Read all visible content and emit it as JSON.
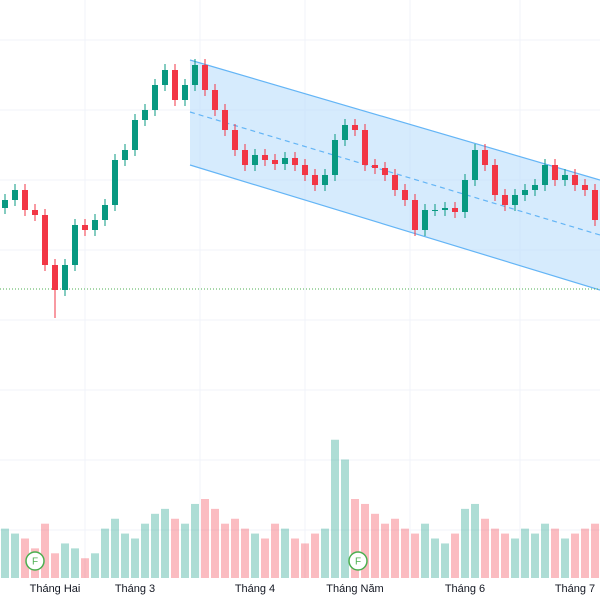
{
  "chart_data": {
    "type": "candlestick",
    "categories": [
      null,
      null,
      null,
      null,
      null,
      "Tháng Hai",
      null,
      null,
      null,
      null,
      null,
      null,
      null,
      "Tháng 3",
      null,
      null,
      null,
      null,
      null,
      null,
      null,
      null,
      null,
      null,
      null,
      "Tháng 4",
      null,
      null,
      null,
      null,
      null,
      null,
      null,
      null,
      null,
      "Tháng Năm",
      null,
      null,
      null,
      null,
      null,
      null,
      null,
      null,
      null,
      null,
      "Tháng 6",
      null,
      null,
      null,
      null,
      null,
      null,
      null,
      null,
      null,
      null,
      "Tháng 7",
      null,
      null
    ],
    "open": [
      48,
      50,
      52.5,
      47.5,
      46.25,
      33.75,
      27.5,
      33.75,
      43.75,
      42.5,
      45,
      48.75,
      60,
      62.5,
      70,
      72.5,
      78.75,
      82.5,
      75,
      78.75,
      83.75,
      77.5,
      72.5,
      67.5,
      62.5,
      58.75,
      61.25,
      60,
      59,
      60.5,
      58.75,
      56.25,
      53.75,
      56.25,
      65,
      68.75,
      67.5,
      58.75,
      58,
      56.25,
      52.5,
      50,
      42.5,
      47.5,
      47.5,
      48,
      47,
      55,
      62.5,
      58.75,
      51.25,
      48.75,
      51.25,
      52.5,
      53.75,
      58.75,
      55,
      56.25,
      53.75,
      52.5
    ],
    "high": [
      51.5,
      54,
      54,
      49,
      47.75,
      35.25,
      35.25,
      45.25,
      45.25,
      46.5,
      50.25,
      61.5,
      64,
      71.5,
      74,
      80.25,
      84,
      84,
      80.25,
      85.25,
      85.25,
      79,
      74,
      69,
      64,
      62.75,
      62.75,
      61.5,
      62,
      62,
      60.25,
      57.75,
      57.75,
      66.5,
      70.25,
      70.25,
      69,
      60.25,
      59.5,
      57.75,
      54,
      51.5,
      49,
      49,
      49.5,
      49.5,
      56.5,
      64,
      64,
      60.25,
      52.75,
      52.75,
      54,
      55.25,
      60.25,
      60.25,
      57.75,
      57.75,
      55.25,
      54
    ],
    "low": [
      46.5,
      48.5,
      46,
      44.75,
      32.25,
      20.5,
      26,
      32.25,
      41,
      41,
      43.5,
      47.25,
      58.5,
      61,
      68.5,
      71,
      77.25,
      73.5,
      73.5,
      77.25,
      76,
      71,
      66,
      61,
      57.25,
      57.25,
      58.5,
      57.5,
      57.5,
      57.25,
      54.75,
      52.25,
      52.25,
      54.75,
      63.5,
      66,
      57.25,
      56.5,
      54.75,
      51,
      48.5,
      41,
      41,
      46,
      46,
      45.5,
      45.5,
      53.5,
      57.25,
      49.75,
      47.25,
      47.25,
      49.75,
      51,
      52.25,
      53.5,
      53.5,
      52.25,
      51,
      43.5
    ],
    "close": [
      50,
      52.5,
      47.5,
      46.25,
      33.75,
      27.5,
      33.75,
      43.75,
      42.5,
      45,
      48.75,
      60,
      62.5,
      70,
      72.5,
      78.75,
      82.5,
      75,
      78.75,
      83.75,
      77.5,
      72.5,
      67.5,
      62.5,
      58.75,
      61.25,
      60,
      59,
      60.5,
      58.75,
      56.25,
      53.75,
      56.25,
      65,
      68.75,
      67.5,
      58.75,
      58,
      56.25,
      52.5,
      50,
      42.5,
      47.5,
      47.5,
      48,
      47,
      55,
      62.5,
      58.75,
      51.25,
      48.75,
      51.25,
      52.5,
      53.75,
      58.75,
      55,
      56.25,
      53.75,
      52.5,
      45
    ],
    "volume": [
      50,
      45,
      40,
      30,
      55,
      25,
      35,
      30,
      20,
      25,
      50,
      60,
      45,
      40,
      55,
      65,
      70,
      60,
      55,
      75,
      80,
      70,
      55,
      60,
      50,
      45,
      40,
      55,
      50,
      40,
      35,
      45,
      50,
      140,
      120,
      80,
      75,
      65,
      55,
      60,
      50,
      45,
      55,
      40,
      35,
      45,
      70,
      75,
      60,
      50,
      45,
      40,
      50,
      45,
      55,
      50,
      40,
      45,
      50,
      55
    ],
    "ylim": [
      0,
      100
    ],
    "volume_lim": [
      0,
      160
    ],
    "up_color": "#089981",
    "down_color": "#f23645",
    "event_labels": [
      "F",
      "F"
    ]
  }
}
